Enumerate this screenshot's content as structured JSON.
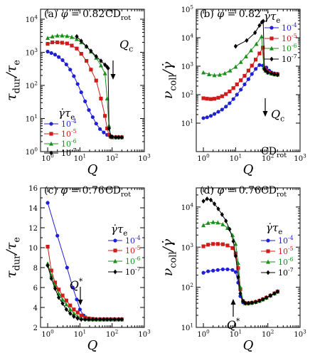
{
  "figure": {
    "colors": {
      "s4": "#1f1fd6",
      "s5": "#d11a1a",
      "s6": "#1a8f1a",
      "s7": "#000000"
    },
    "legend_title": "γ̇τe"
  },
  "chart_data": [
    {
      "type": "line",
      "panel_label": "(a) φ = 0.82",
      "tag": "CDrot",
      "xlabel": "Q",
      "ylabel": "τdur/τe",
      "xscale": "log",
      "yscale": "log",
      "xlim": [
        0.6,
        1000
      ],
      "ylim": [
        1,
        20000
      ],
      "xticks": [
        "10^0",
        "10^1",
        "10^2",
        "10^3"
      ],
      "yticks": [
        "10^0",
        "10^1",
        "10^2",
        "10^3",
        "10^4"
      ],
      "annotation": "Qc",
      "legend_position": "center-left",
      "series": [
        {
          "name": "10^-4",
          "marker": "circle",
          "x": [
            1,
            1.3,
            1.7,
            2.2,
            2.9,
            3.8,
            5,
            6.5,
            8.5,
            11,
            14.5,
            19,
            25,
            32,
            42,
            55,
            70,
            85,
            100,
            130,
            160,
            200
          ],
          "y": [
            1050,
            950,
            850,
            720,
            580,
            430,
            300,
            190,
            110,
            62,
            33,
            18,
            11,
            7,
            4.8,
            3.8,
            3.2,
            3,
            2.8,
            2.7,
            2.7,
            2.7
          ]
        },
        {
          "name": "10^-5",
          "marker": "square",
          "x": [
            1,
            1.4,
            2,
            2.8,
            4,
            5.6,
            8,
            11,
            16,
            22,
            32,
            45,
            60,
            70,
            80,
            90,
            100,
            130,
            160,
            200
          ],
          "y": [
            1800,
            2000,
            2000,
            1950,
            1850,
            1600,
            1300,
            900,
            550,
            300,
            140,
            40,
            12,
            5,
            3.2,
            2.8,
            2.7,
            2.7,
            2.7,
            2.7
          ]
        },
        {
          "name": "10^-6",
          "marker": "triangle",
          "x": [
            1,
            1.4,
            2,
            2.8,
            4,
            5.6,
            8,
            11,
            16,
            22,
            32,
            45,
            60,
            70,
            80,
            90,
            100,
            130,
            160,
            200
          ],
          "y": [
            2700,
            3000,
            3200,
            3200,
            3100,
            2900,
            2500,
            2000,
            1500,
            1050,
            680,
            400,
            230,
            40,
            6,
            3,
            2.8,
            2.7,
            2.7,
            2.7
          ]
        },
        {
          "name": "10^-7",
          "marker": "diamond",
          "x": [
            8,
            11,
            16,
            22,
            32,
            45,
            60,
            70,
            75,
            80,
            90,
            100,
            130,
            160,
            200
          ],
          "y": [
            3000,
            2200,
            1500,
            1100,
            750,
            550,
            420,
            360,
            330,
            5,
            2.9,
            2.8,
            2.7,
            2.7,
            2.7
          ]
        }
      ]
    },
    {
      "type": "line",
      "panel_label": "(b) φ = 0.82",
      "tag": "CDrot",
      "xlabel": "Q",
      "ylabel": "νcoll/γ̇",
      "xscale": "log",
      "yscale": "log",
      "xlim": [
        0.6,
        1000
      ],
      "ylim": [
        1,
        100000
      ],
      "xticks": [
        "10^0",
        "10^1",
        "10^2",
        "10^3"
      ],
      "yticks": [
        "10^1",
        "10^2",
        "10^3",
        "10^4",
        "10^5"
      ],
      "annotation": "Qc",
      "legend_position": "top-right",
      "series": [
        {
          "name": "10^-4",
          "marker": "circle",
          "x": [
            1,
            1.3,
            1.7,
            2.2,
            2.9,
            3.8,
            5,
            6.5,
            8.5,
            11,
            14.5,
            19,
            25,
            32,
            42,
            55,
            70,
            90,
            110,
            130,
            160,
            200
          ],
          "y": [
            15,
            16,
            18,
            21,
            25,
            30,
            38,
            50,
            70,
            100,
            150,
            230,
            350,
            530,
            800,
            1100,
            1050,
            900,
            700,
            600,
            560,
            540
          ]
        },
        {
          "name": "10^-5",
          "marker": "square",
          "x": [
            1,
            1.3,
            1.7,
            2.2,
            2.9,
            3.8,
            5,
            6.5,
            8.5,
            11,
            14.5,
            19,
            25,
            32,
            42,
            55,
            70,
            80,
            90,
            110,
            130,
            160,
            200
          ],
          "y": [
            75,
            72,
            70,
            72,
            78,
            88,
            105,
            130,
            170,
            230,
            320,
            460,
            700,
            1050,
            1700,
            2800,
            4500,
            800,
            700,
            600,
            560,
            540,
            520
          ]
        },
        {
          "name": "10^-6",
          "marker": "triangle",
          "x": [
            1,
            1.5,
            2.2,
            3.2,
            4.6,
            6.7,
            10,
            14.5,
            21,
            30,
            44,
            64,
            75,
            85,
            100,
            130,
            160,
            200
          ],
          "y": [
            600,
            520,
            480,
            500,
            560,
            700,
            950,
            1400,
            2200,
            3600,
            6000,
            11000,
            900,
            700,
            600,
            550,
            520,
            500
          ]
        },
        {
          "name": "10^-7",
          "marker": "diamond",
          "x": [
            10,
            22,
            40,
            55,
            65,
            72,
            78,
            85,
            100,
            130,
            160,
            200
          ],
          "y": [
            5000,
            8000,
            15000,
            27000,
            35000,
            38000,
            800,
            700,
            600,
            560,
            520,
            500
          ]
        }
      ]
    },
    {
      "type": "line",
      "panel_label": "(c) φ = 0.76",
      "tag": "CDrot",
      "xlabel": "Q",
      "ylabel": "τdur/τe",
      "xscale": "log",
      "yscale": "linear",
      "xlim": [
        0.6,
        1000
      ],
      "ylim": [
        2,
        16
      ],
      "xticks": [
        "10^0",
        "10^1",
        "10^2",
        "10^3"
      ],
      "yticks": [
        "2",
        "4",
        "6",
        "8",
        "10",
        "12",
        "14",
        "16"
      ],
      "annotation": "Q*",
      "legend_position": "right",
      "series": [
        {
          "name": "10^-4",
          "marker": "circle",
          "x": [
            1,
            2,
            4,
            6,
            8,
            10,
            13,
            17,
            22,
            30,
            45,
            60,
            80,
            110,
            150,
            200
          ],
          "y": [
            14.5,
            11.2,
            8,
            6,
            4.8,
            3.8,
            3.2,
            2.9,
            2.8,
            2.8,
            2.8,
            2.8,
            2.8,
            2.8,
            2.8,
            2.8
          ]
        },
        {
          "name": "10^-5",
          "marker": "square",
          "x": [
            1,
            1.3,
            1.7,
            2.2,
            2.9,
            3.8,
            5,
            6.5,
            8.5,
            11,
            14.5,
            19,
            25,
            32,
            42,
            55,
            70,
            90,
            120,
            160,
            200
          ],
          "y": [
            10.1,
            7.7,
            6.5,
            5.8,
            5.2,
            4.7,
            4.2,
            3.8,
            3.5,
            3.2,
            3,
            2.9,
            2.85,
            2.8,
            2.8,
            2.8,
            2.8,
            2.8,
            2.8,
            2.8,
            2.8
          ]
        },
        {
          "name": "10^-6",
          "marker": "triangle",
          "x": [
            1,
            1.3,
            1.7,
            2.2,
            2.9,
            3.8,
            5,
            6.5,
            8.5,
            11,
            14.5,
            19,
            25,
            32,
            42,
            55,
            70,
            90,
            120,
            160,
            200
          ],
          "y": [
            8.4,
            7.2,
            6.2,
            5.4,
            4.8,
            4.3,
            3.8,
            3.4,
            3.1,
            2.9,
            2.85,
            2.8,
            2.8,
            2.8,
            2.8,
            2.8,
            2.8,
            2.8,
            2.8,
            2.8,
            2.8
          ]
        },
        {
          "name": "10^-7",
          "marker": "diamond",
          "x": [
            1,
            1.3,
            1.7,
            2.2,
            2.9,
            3.8,
            5,
            6.5,
            8.5,
            11,
            14.5,
            19,
            25,
            32,
            42,
            55,
            70,
            90,
            120,
            160,
            200
          ],
          "y": [
            8.2,
            6.9,
            5.9,
            5,
            4.4,
            3.8,
            3.4,
            3.1,
            2.9,
            2.8,
            2.8,
            2.8,
            2.8,
            2.8,
            2.8,
            2.8,
            2.8,
            2.8,
            2.8,
            2.8,
            2.8
          ]
        }
      ]
    },
    {
      "type": "line",
      "panel_label": "(d) φ = 0.76",
      "tag": "CDrot",
      "xlabel": "Q",
      "ylabel": "νcoll/γ̇",
      "xscale": "log",
      "yscale": "log",
      "xlim": [
        0.6,
        1000
      ],
      "ylim": [
        10,
        30000
      ],
      "xticks": [
        "10^0",
        "10^1",
        "10^2",
        "10^3"
      ],
      "yticks": [
        "10^1",
        "10^2",
        "10^3",
        "10^4"
      ],
      "annotation": "Q*",
      "legend_position": "right",
      "series": [
        {
          "name": "10^-4",
          "marker": "circle",
          "x": [
            1,
            1.4,
            2,
            2.8,
            4,
            5.6,
            8,
            10,
            12,
            14,
            17,
            20,
            25,
            32,
            42,
            55,
            70,
            90,
            120,
            160,
            200
          ],
          "y": [
            230,
            250,
            260,
            270,
            280,
            280,
            270,
            240,
            130,
            60,
            42,
            40,
            40,
            41,
            43,
            46,
            50,
            55,
            62,
            70,
            78
          ]
        },
        {
          "name": "10^-5",
          "marker": "square",
          "x": [
            1,
            1.4,
            2,
            2.8,
            4,
            5.6,
            8,
            10,
            12,
            14,
            17,
            20,
            25,
            32,
            42,
            55,
            70,
            90,
            120,
            160,
            200
          ],
          "y": [
            1050,
            1150,
            1200,
            1200,
            1180,
            1100,
            950,
            700,
            300,
            90,
            45,
            40,
            40,
            41,
            43,
            46,
            50,
            55,
            62,
            70,
            78
          ]
        },
        {
          "name": "10^-6",
          "marker": "triangle",
          "x": [
            1,
            1.4,
            2,
            2.8,
            4,
            5.6,
            8,
            10,
            12,
            14,
            17,
            20,
            25,
            32,
            42,
            55,
            70,
            90,
            120,
            160,
            200
          ],
          "y": [
            3500,
            4000,
            4200,
            4100,
            3700,
            3000,
            2000,
            1200,
            400,
            100,
            45,
            40,
            40,
            41,
            43,
            46,
            50,
            55,
            62,
            70,
            78
          ]
        },
        {
          "name": "10^-7",
          "marker": "diamond",
          "x": [
            1,
            1.3,
            1.7,
            2.2,
            2.9,
            3.8,
            5,
            6.5,
            8.5,
            10,
            12,
            14,
            17,
            20,
            25,
            32,
            42,
            55,
            70,
            90,
            120,
            160,
            200
          ],
          "y": [
            14000,
            16000,
            15000,
            12000,
            9000,
            6500,
            4500,
            2800,
            1400,
            600,
            180,
            70,
            45,
            40,
            40,
            41,
            43,
            46,
            50,
            55,
            62,
            70,
            78
          ]
        }
      ]
    }
  ]
}
